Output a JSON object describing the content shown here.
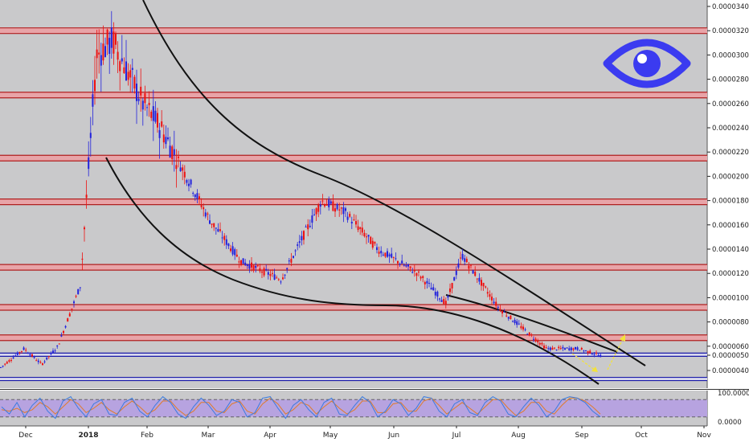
{
  "chart_data": {
    "type": "candlestick",
    "price_axis": {
      "ticks": [
        "0.00003400",
        "0.00003200",
        "0.00003000",
        "0.00002800",
        "0.00002600",
        "0.00002400",
        "0.00002200",
        "0.00002000",
        "0.00001800",
        "0.00001600",
        "0.00001400",
        "0.00001200",
        "0.00001000",
        "0.00000800",
        "0.00000600",
        "0.00000400"
      ],
      "current_price": "0.00000502",
      "ylim": [
        3e-06,
        3.5e-05
      ]
    },
    "time_axis": {
      "labels": [
        "Dec",
        "2018",
        "Feb",
        "Mar",
        "Apr",
        "May",
        "Jun",
        "Jul",
        "Aug",
        "Sep",
        "Oct",
        "Nov"
      ]
    },
    "resistance_levels": [
      3.2e-05,
      2.67e-05,
      2.15e-05,
      1.79e-05,
      1.25e-05,
      9.2e-06,
      6.7e-06
    ],
    "blue_levels": [
      5.3e-06,
      3.3e-06
    ],
    "key_prices": [
      2.2e-06,
      3.42e-05,
      1.3e-05,
      1.1e-05,
      1.95e-05,
      9e-06,
      1.35e-05,
      6e-06,
      5.5e-06,
      5e-06
    ],
    "oscillator": {
      "ticks": [
        "100.0000",
        "0.0000"
      ],
      "band": [
        20,
        80
      ],
      "k": [
        55,
        30,
        70,
        20,
        60,
        85,
        40,
        15,
        75,
        90,
        50,
        20,
        65,
        80,
        30,
        25,
        70,
        85,
        40,
        20,
        60,
        90,
        70,
        30,
        15,
        55,
        85,
        60,
        25,
        40,
        80,
        70,
        20,
        35,
        85,
        90,
        50,
        15,
        60,
        80,
        45,
        20,
        70,
        85,
        30,
        25,
        60,
        90,
        70,
        20,
        40,
        80,
        65,
        25,
        50,
        90,
        85,
        40,
        20,
        65,
        80,
        35,
        25,
        70,
        90,
        75,
        30,
        20,
        55,
        85,
        60,
        20,
        40,
        80,
        90,
        85,
        70,
        40,
        20
      ],
      "d": [
        45,
        40,
        50,
        35,
        45,
        70,
        55,
        30,
        55,
        80,
        65,
        35,
        50,
        70,
        45,
        30,
        55,
        75,
        55,
        30,
        45,
        75,
        75,
        45,
        25,
        40,
        70,
        70,
        40,
        35,
        65,
        75,
        40,
        30,
        65,
        85,
        65,
        30,
        45,
        70,
        60,
        30,
        55,
        75,
        50,
        30,
        45,
        75,
        75,
        35,
        35,
        65,
        70,
        40,
        40,
        75,
        85,
        60,
        30,
        50,
        70,
        50,
        30,
        55,
        80,
        80,
        50,
        25,
        40,
        70,
        70,
        40,
        30,
        60,
        85,
        85,
        75,
        55,
        30
      ]
    },
    "colors": {
      "bull": "#2222dd",
      "bear": "#ee1111",
      "resistance_fill": "#e8a4a8",
      "resistance_edge": "#b02020",
      "blue_line": "#1a1aa8",
      "plot_bg": "#c9c9cb",
      "osc_band": "#b7a3e0",
      "osc_k": "#3a7be0",
      "osc_d": "#e07b2a",
      "eye": "#3b3bf0"
    },
    "icon": "eye-icon"
  }
}
